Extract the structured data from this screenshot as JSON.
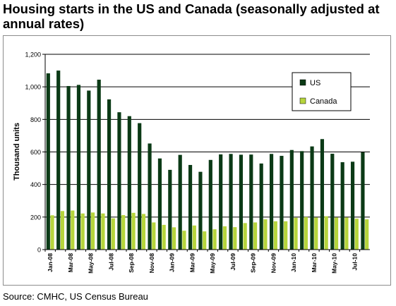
{
  "header": {
    "title_line1": "Housing starts in the US and Canada (seasonally adjusted at",
    "title_line2": "annual rates)"
  },
  "footer": {
    "source": "Source: CMHC, US Census Bureau"
  },
  "colors": {
    "us": "#0b3a16",
    "canada": "#b6d53c",
    "grid": "#000000"
  },
  "chart_data": {
    "type": "bar",
    "title": "Housing starts in the US and Canada (seasonally adjusted at annual rates)",
    "xlabel": "",
    "ylabel": "Thousand units",
    "ylim": [
      0,
      1200
    ],
    "yticks": [
      "0",
      "200",
      "400",
      "600",
      "800",
      "1,000",
      "1,200"
    ],
    "ytick_values": [
      0,
      200,
      400,
      600,
      800,
      1000,
      1200
    ],
    "grid": true,
    "legend": "top-right",
    "categories": [
      "Jan-08",
      "Feb-08",
      "Mar-08",
      "Apr-08",
      "May-08",
      "Jun-08",
      "Jul-08",
      "Aug-08",
      "Sep-08",
      "Oct-08",
      "Nov-08",
      "Dec-08",
      "Jan-09",
      "Feb-09",
      "Mar-09",
      "Apr-09",
      "May-09",
      "Jun-09",
      "Jul-09",
      "Aug-09",
      "Sep-09",
      "Oct-09",
      "Nov-09",
      "Dec-09",
      "Jan-10",
      "Feb-10",
      "Mar-10",
      "Apr-10",
      "May-10",
      "Jun-10",
      "Jul-10",
      "Aug-10"
    ],
    "tick_labels": [
      "Jan-08",
      "",
      "Mar-08",
      "",
      "May-08",
      "",
      "Jul-08",
      "",
      "Sep-08",
      "",
      "Nov-08",
      "",
      "Jan-09",
      "",
      "Mar-09",
      "",
      "May-09",
      "",
      "Jul-09",
      "",
      "Sep-09",
      "",
      "Nov-09",
      "",
      "Jan-10",
      "",
      "Mar-10",
      "",
      "May-10",
      "",
      "Jul-10",
      ""
    ],
    "series": [
      {
        "name": "US",
        "values": [
          1083,
          1100,
          1005,
          1012,
          977,
          1044,
          923,
          844,
          820,
          777,
          652,
          560,
          490,
          582,
          520,
          478,
          551,
          585,
          588,
          583,
          584,
          529,
          588,
          576,
          612,
          605,
          634,
          679,
          589,
          537,
          540,
          598
        ]
      },
      {
        "name": "Canada",
        "values": [
          211,
          237,
          240,
          222,
          228,
          222,
          192,
          212,
          226,
          219,
          167,
          152,
          137,
          116,
          148,
          112,
          125,
          143,
          138,
          163,
          167,
          186,
          174,
          174,
          196,
          200,
          197,
          205,
          197,
          197,
          190,
          186
        ]
      }
    ]
  }
}
